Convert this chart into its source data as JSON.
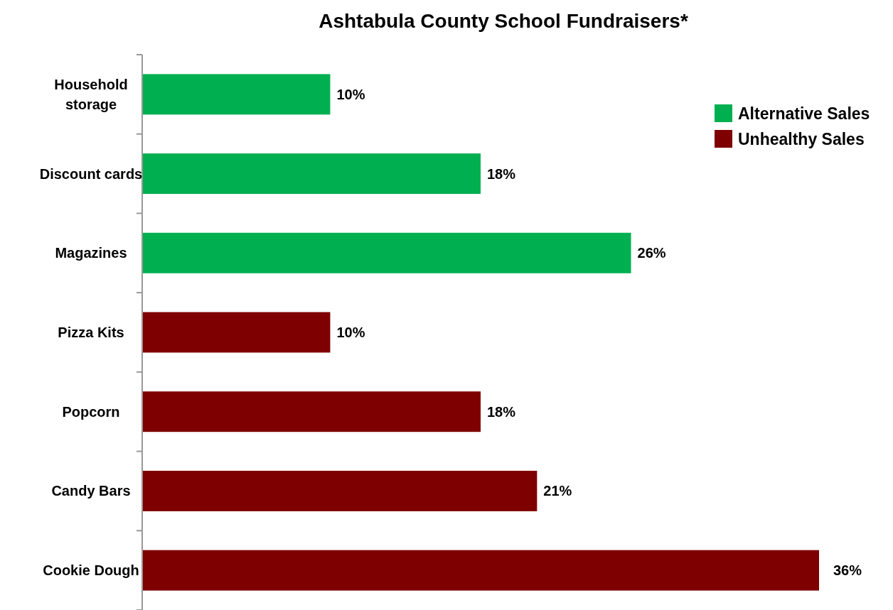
{
  "chart_data": {
    "type": "bar",
    "orientation": "horizontal",
    "stacked": true,
    "title": "Ashtabula County School Fundraisers*",
    "categories": [
      "Household storage",
      "Discount cards",
      "Magazines",
      "Pizza Kits",
      "Popcorn",
      "Candy Bars",
      "Cookie Dough"
    ],
    "series": [
      {
        "name": "Alternative Sales",
        "color": "#00b050",
        "values": [
          10,
          18,
          26,
          null,
          null,
          null,
          null
        ],
        "value_labels": [
          "10%",
          "18%",
          "26%",
          null,
          null,
          null,
          null
        ]
      },
      {
        "name": "Unhealthy Sales",
        "color": "#7f0000",
        "values": [
          null,
          null,
          null,
          10,
          18,
          21,
          36
        ],
        "value_labels": [
          null,
          null,
          null,
          "10%",
          "18%",
          "21%",
          "36%"
        ]
      }
    ],
    "legend": "top right",
    "grid": false
  }
}
